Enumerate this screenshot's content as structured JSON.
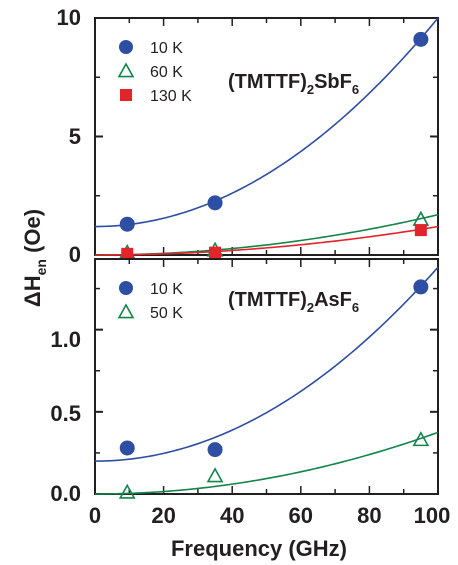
{
  "chart_data": [
    {
      "type": "scatter",
      "panel": "top",
      "compound": {
        "base": "(TMTTF)",
        "sub1": "2",
        "mid": "SbF",
        "sub2": "6"
      },
      "xlim": [
        0,
        100
      ],
      "ylim": [
        0,
        10
      ],
      "yticks": [
        "0",
        "5",
        "10"
      ],
      "legend_position": "top-left",
      "series": [
        {
          "name": "10 K",
          "marker": "filled-circle",
          "color": "#2e4ea3",
          "x": [
            9.4,
            35,
            95
          ],
          "y": [
            1.3,
            2.2,
            9.1
          ]
        },
        {
          "name": "60 K",
          "marker": "open-triangle",
          "color": "#13854a",
          "x": [
            9.4,
            35,
            95
          ],
          "y": [
            0.1,
            0.2,
            1.5
          ]
        },
        {
          "name": "130 K",
          "marker": "filled-square",
          "color": "#e2242b",
          "x": [
            9.4,
            35,
            95
          ],
          "y": [
            0.05,
            0.1,
            1.05
          ]
        }
      ],
      "fits": [
        {
          "color": "#2e4ea3",
          "a": 1.2,
          "b": 0.00088
        },
        {
          "color": "#13854a",
          "a": 0.0,
          "b": 0.00017
        },
        {
          "color": "#e2242b",
          "a": 0.0,
          "b": 0.00012
        }
      ]
    },
    {
      "type": "scatter",
      "panel": "bottom",
      "compound": {
        "base": "(TMTTF)",
        "sub1": "2",
        "mid": "AsF",
        "sub2": "6"
      },
      "xlim": [
        0,
        100
      ],
      "ylim": [
        0,
        1.43
      ],
      "yticks": [
        "0.0",
        "0.5",
        "1.0"
      ],
      "legend_position": "top-left",
      "series": [
        {
          "name": "10 K",
          "marker": "filled-circle",
          "color": "#2e4ea3",
          "x": [
            9.4,
            35,
            95
          ],
          "y": [
            0.28,
            0.27,
            1.26
          ]
        },
        {
          "name": "50 K",
          "marker": "open-triangle",
          "color": "#13854a",
          "x": [
            9.4,
            35,
            95
          ],
          "y": [
            0.01,
            0.11,
            0.33
          ]
        }
      ],
      "fits": [
        {
          "color": "#2e4ea3",
          "a": 0.2,
          "b": 0.000118
        },
        {
          "color": "#13854a",
          "a": 0.0,
          "b": 3.75e-05
        }
      ]
    }
  ],
  "xticks": [
    "0",
    "20",
    "40",
    "60",
    "80",
    "100"
  ],
  "xlabel": "Frequency (GHz)",
  "ylabel": {
    "main": "ΔH",
    "sub": "en",
    "unit": " (Oe)"
  }
}
